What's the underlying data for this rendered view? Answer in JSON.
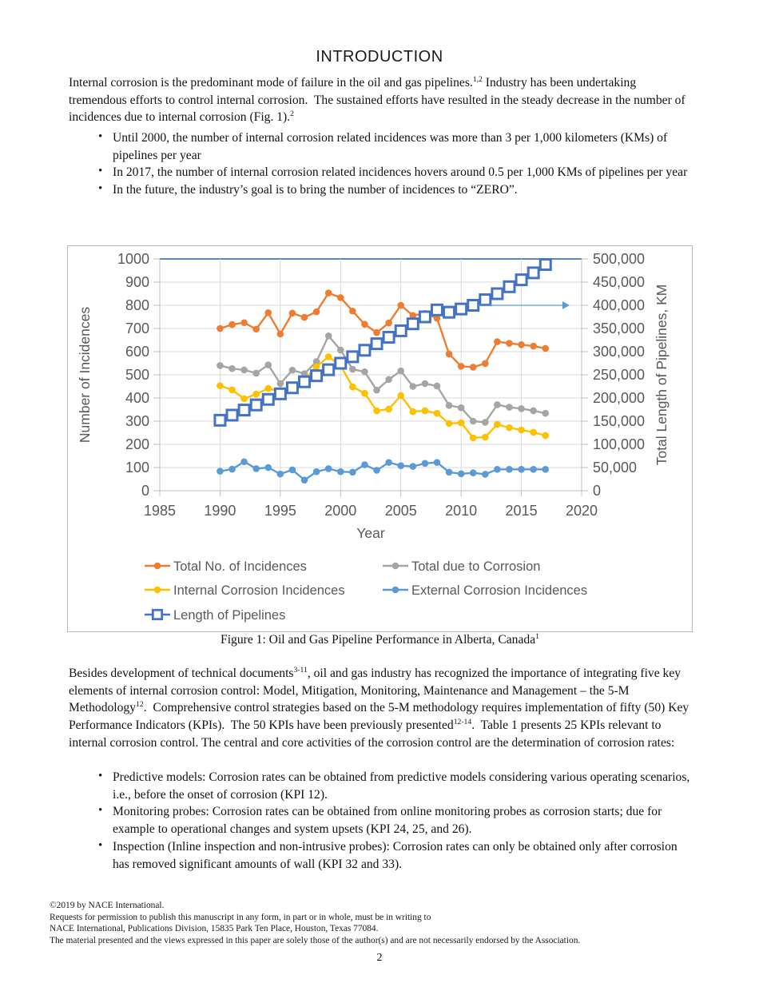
{
  "page": {
    "title": "INTRODUCTION",
    "paragraph1": [
      {
        "t": "Internal corrosion is the predominant mode of failure in the oil and gas pipelines."
      },
      {
        "sup": "1,2"
      },
      {
        "t": " Industry has been undertaking tremendous efforts to control internal corrosion.  The sustained efforts have resulted in the steady decrease in the number of incidences due to internal corrosion (Fig. 1)."
      },
      {
        "sup": "2"
      }
    ],
    "bullets1": [
      [
        {
          "t": "Until 2000, the number of internal corrosion related incidences was more than 3 per 1,000 kilometers (KMs) of pipelines per year"
        }
      ],
      [
        {
          "t": "In 2017, the number of internal corrosion related incidences hovers around 0.5 per 1,000 KMs of pipelines per year"
        }
      ],
      [
        {
          "t": "In the future, the industry’s goal is to bring the number of incidences to “ZERO”."
        }
      ]
    ],
    "figure_caption": [
      {
        "t": "Figure 1: Oil and Gas Pipeline Performance in Alberta, Canada"
      },
      {
        "sup": "1"
      }
    ],
    "paragraph2": [
      {
        "t": "Besides development of technical documents"
      },
      {
        "sup": "3-11"
      },
      {
        "t": ", oil and gas industry has recognized the importance of integrating five key elements of internal corrosion control: Model, Mitigation, Monitoring, Maintenance and Management – the 5-M Methodology"
      },
      {
        "sup": "12"
      },
      {
        "t": ".  Comprehensive control strategies based on the 5-M methodology requires implementation of fifty (50) Key Performance Indicators (KPIs).  The 50 KPIs have been previously presented"
      },
      {
        "sup": "12-14"
      },
      {
        "t": ".  Table 1 presents 25 KPIs relevant to internal corrosion control. The central and core activities of the corrosion control are the determination of corrosion rates:"
      }
    ],
    "bullets2": [
      [
        {
          "t": "Predictive models: Corrosion rates can be obtained from predictive models considering various operating scenarios, i.e., before the onset of corrosion (KPI 12)."
        }
      ],
      [
        {
          "t": "Monitoring probes: Corrosion rates can be obtained from online monitoring probes as corrosion starts; due for example to operational changes and system upsets (KPI 24, 25, and 26)."
        }
      ],
      [
        {
          "t": "Inspection (Inline inspection and non-intrusive probes): Corrosion rates can only be obtained only after corrosion has removed significant amounts of wall (KPI 32 and 33)."
        }
      ]
    ],
    "footer_lines": [
      "©2019 by NACE International.",
      "Requests for permission to publish this manuscript in any form, in part or in whole, must be in writing to",
      "NACE International, Publications Division, 15835 Park Ten Place, Houston, Texas 77084.",
      "The material presented and the views expressed in this paper are solely those of the author(s) and are not necessarily endorsed by the Association."
    ],
    "page_number": "2"
  },
  "chart_data": {
    "type": "line",
    "title": "",
    "xlabel": "Year",
    "ylabel_left": "Number of Incidences",
    "ylabel_right": "Total Length of Pipelines, KM",
    "xlim": [
      1985,
      2020
    ],
    "x_ticks": [
      1985,
      1990,
      1995,
      2000,
      2005,
      2010,
      2015,
      2020
    ],
    "ylim_left": [
      0,
      1000
    ],
    "ytick_step_left": 100,
    "ylim_right": [
      0,
      500000
    ],
    "ytick_step_right": 50000,
    "grid": true,
    "legend_position": "bottom",
    "colors": {
      "grid": "#d9d9d9",
      "axis": "#bfbfbf",
      "top_border": "#4472c4",
      "text": "#595959"
    },
    "years": [
      1990,
      1991,
      1992,
      1993,
      1994,
      1995,
      1996,
      1997,
      1998,
      1999,
      2000,
      2001,
      2002,
      2003,
      2004,
      2005,
      2006,
      2007,
      2008,
      2009,
      2010,
      2011,
      2012,
      2013,
      2014,
      2015,
      2016,
      2017
    ],
    "series": [
      {
        "name": "Total No. of Incidences",
        "color": "#ED7D31",
        "axis": "left",
        "marker": "dot",
        "values": [
          700,
          717,
          725,
          697,
          768,
          676,
          766,
          748,
          772,
          853,
          833,
          775,
          718,
          682,
          724,
          800,
          756,
          765,
          744,
          590,
          537,
          533,
          549,
          643,
          636,
          630,
          624,
          614
        ]
      },
      {
        "name": "Total due to Corrosion",
        "color": "#A5A5A5",
        "axis": "left",
        "marker": "dot",
        "values": [
          540,
          527,
          521,
          507,
          543,
          462,
          520,
          505,
          557,
          668,
          607,
          524,
          513,
          434,
          480,
          517,
          450,
          462,
          452,
          368,
          358,
          300,
          295,
          371,
          360,
          354,
          345,
          334
        ]
      },
      {
        "name": "Internal Corrosion Incidences",
        "color": "#FFC000",
        "axis": "left",
        "marker": "dot",
        "values": [
          453,
          435,
          397,
          417,
          441,
          427,
          448,
          480,
          535,
          578,
          540,
          448,
          420,
          345,
          352,
          410,
          341,
          345,
          334,
          290,
          293,
          228,
          231,
          286,
          272,
          262,
          252,
          238
        ]
      },
      {
        "name": "External Corrosion Incidences",
        "color": "#5B9BD5",
        "axis": "left",
        "marker": "dot",
        "values": [
          84,
          93,
          125,
          95,
          100,
          72,
          90,
          46,
          82,
          95,
          82,
          80,
          112,
          88,
          122,
          108,
          105,
          118,
          122,
          80,
          73,
          77,
          71,
          92,
          92,
          92,
          92,
          92
        ]
      },
      {
        "name": "Length of Pipelines",
        "color": "#4472C4",
        "axis": "right",
        "marker": "open-square",
        "values": [
          152000,
          163000,
          174000,
          185000,
          197000,
          209000,
          222000,
          235000,
          248000,
          261000,
          275000,
          289000,
          303000,
          317000,
          331000,
          345000,
          360000,
          375000,
          390000,
          385000,
          392000,
          400000,
          412000,
          425000,
          440000,
          455000,
          470000,
          488000
        ]
      }
    ],
    "annotation_arrow": {
      "y_right": 400000,
      "x_from": 2011.3,
      "x_to": 2019.0,
      "color": "#5B9BD5"
    }
  }
}
